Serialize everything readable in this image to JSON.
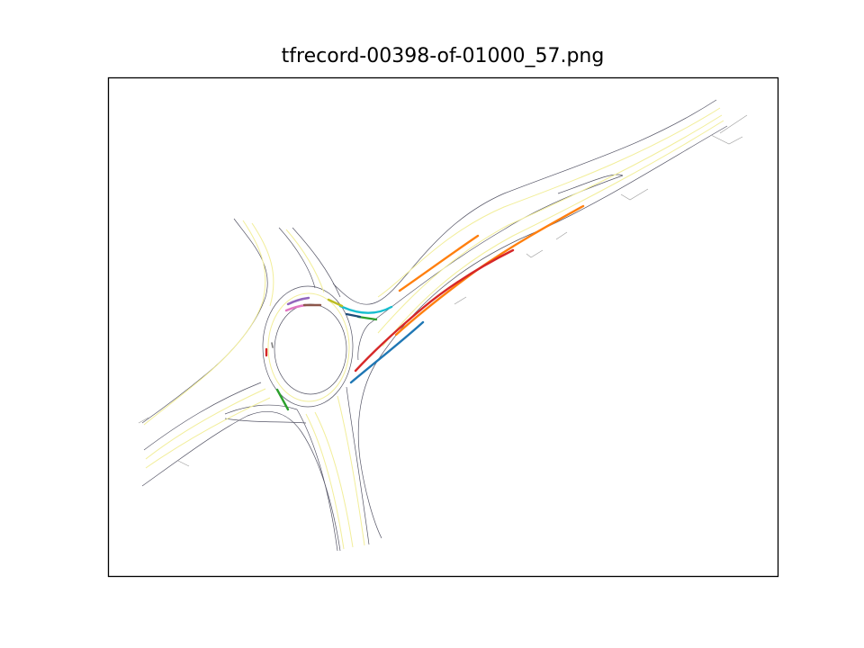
{
  "figure": {
    "title": "tfrecord-00398-of-01000_57.png"
  },
  "colors": {
    "road_edge": "#555566",
    "road_edge_light": "#9a9a9a",
    "lane_center": "#f2ee9a",
    "frame": "#000000",
    "trajectories": [
      "#ff7f0e",
      "#d62728",
      "#1f77b4",
      "#17becf",
      "#2ca02c",
      "#9467bd",
      "#e377c2",
      "#8c564b",
      "#7f7f7f",
      "#bcbd22"
    ]
  },
  "map": {
    "features": [
      "roundabout",
      "highway-ramp",
      "road-edges",
      "lane-centerlines",
      "agent-trajectories"
    ]
  }
}
